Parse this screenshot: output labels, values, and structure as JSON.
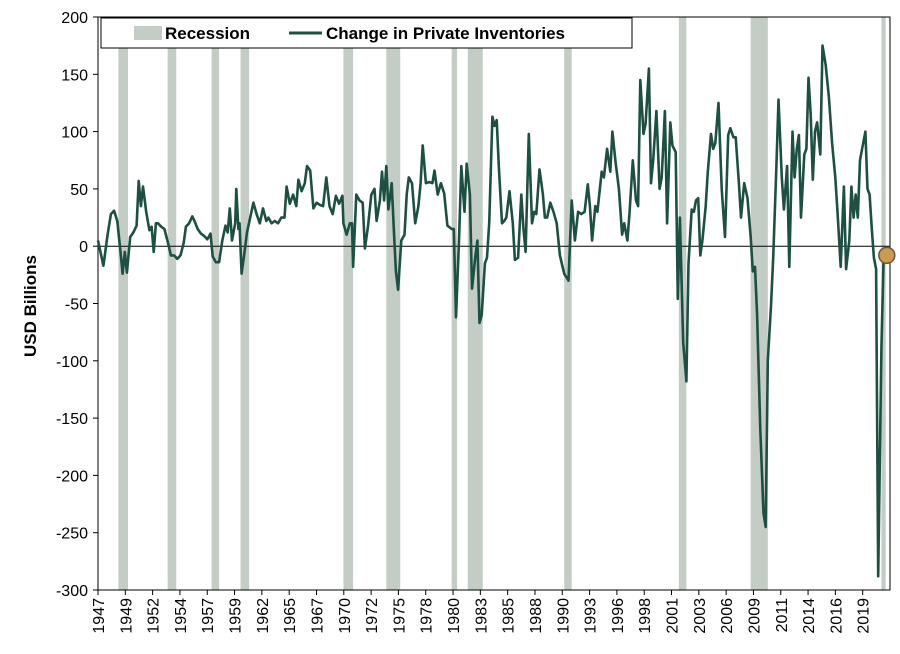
{
  "chart_data": {
    "type": "line",
    "ylabel": "USD Billions",
    "ylim": [
      -300,
      200
    ],
    "yticks": [
      200,
      150,
      100,
      50,
      0,
      -50,
      -100,
      -150,
      -200,
      -250,
      -300
    ],
    "xlim": [
      1947.0,
      2020.9
    ],
    "xtick_labels": [
      "1947",
      "1949",
      "1952",
      "1954",
      "1957",
      "1959",
      "1962",
      "1965",
      "1967",
      "1970",
      "1972",
      "1975",
      "1978",
      "1980",
      "1983",
      "1985",
      "1988",
      "1990",
      "1993",
      "1996",
      "1998",
      "2001",
      "2003",
      "2006",
      "2009",
      "2011",
      "2014",
      "2016",
      "2019"
    ],
    "legend": {
      "placement": "top",
      "entries": [
        {
          "label": "Recession",
          "kind": "band",
          "color": "#c3cdc6"
        },
        {
          "label": "Change in Private Inventories",
          "kind": "line",
          "color": "#1d5043"
        }
      ]
    },
    "colors": {
      "line": "#1d5043",
      "recession": "#c3cdc6",
      "marker": "#c89b50",
      "marker_edge": "#6b5a3a"
    },
    "recessions": [
      [
        1948.9,
        1949.8
      ],
      [
        1953.5,
        1954.3
      ],
      [
        1957.6,
        1958.3
      ],
      [
        1960.3,
        1961.1
      ],
      [
        1969.9,
        1970.8
      ],
      [
        1973.9,
        1975.2
      ],
      [
        1980.0,
        1980.5
      ],
      [
        1981.5,
        1982.9
      ],
      [
        1990.5,
        1991.2
      ],
      [
        2001.2,
        2001.9
      ],
      [
        2007.9,
        2009.5
      ],
      [
        2020.1,
        2020.5
      ]
    ],
    "highlight_point": {
      "x": 2020.6,
      "y": -8
    },
    "series": [
      {
        "name": "Change in Private Inventories",
        "points": [
          [
            1947.0,
            5
          ],
          [
            1947.5,
            -17
          ],
          [
            1947.9,
            10
          ],
          [
            1948.2,
            28
          ],
          [
            1948.5,
            31
          ],
          [
            1948.8,
            22
          ],
          [
            1949.1,
            -5
          ],
          [
            1949.3,
            -24
          ],
          [
            1949.5,
            -5
          ],
          [
            1949.7,
            -23
          ],
          [
            1950.0,
            8
          ],
          [
            1950.3,
            12
          ],
          [
            1950.6,
            18
          ],
          [
            1950.8,
            57
          ],
          [
            1951.0,
            35
          ],
          [
            1951.2,
            52
          ],
          [
            1951.5,
            30
          ],
          [
            1951.8,
            14
          ],
          [
            1952.0,
            17
          ],
          [
            1952.2,
            -5
          ],
          [
            1952.4,
            20
          ],
          [
            1952.6,
            20
          ],
          [
            1952.9,
            17
          ],
          [
            1953.2,
            15
          ],
          [
            1953.5,
            4
          ],
          [
            1953.8,
            -8
          ],
          [
            1954.1,
            -8
          ],
          [
            1954.4,
            -11
          ],
          [
            1954.7,
            -8
          ],
          [
            1955.0,
            3
          ],
          [
            1955.2,
            17
          ],
          [
            1955.5,
            20
          ],
          [
            1955.8,
            26
          ],
          [
            1956.0,
            22
          ],
          [
            1956.3,
            15
          ],
          [
            1956.6,
            11
          ],
          [
            1956.9,
            9
          ],
          [
            1957.2,
            6
          ],
          [
            1957.5,
            11
          ],
          [
            1957.7,
            -9
          ],
          [
            1958.0,
            -14
          ],
          [
            1958.3,
            -14
          ],
          [
            1958.6,
            5
          ],
          [
            1958.9,
            18
          ],
          [
            1959.1,
            12
          ],
          [
            1959.3,
            33
          ],
          [
            1959.5,
            5
          ],
          [
            1959.8,
            20
          ],
          [
            1959.9,
            50
          ],
          [
            1960.1,
            15
          ],
          [
            1960.2,
            20
          ],
          [
            1960.4,
            -24
          ],
          [
            1960.6,
            -10
          ],
          [
            1960.9,
            12
          ],
          [
            1961.2,
            25
          ],
          [
            1961.5,
            38
          ],
          [
            1961.8,
            28
          ],
          [
            1962.1,
            20
          ],
          [
            1962.4,
            33
          ],
          [
            1962.7,
            22
          ],
          [
            1962.9,
            25
          ],
          [
            1963.2,
            20
          ],
          [
            1963.5,
            22
          ],
          [
            1963.8,
            20
          ],
          [
            1964.1,
            25
          ],
          [
            1964.4,
            25
          ],
          [
            1964.6,
            52
          ],
          [
            1964.9,
            37
          ],
          [
            1965.2,
            45
          ],
          [
            1965.5,
            35
          ],
          [
            1965.7,
            58
          ],
          [
            1966.0,
            48
          ],
          [
            1966.3,
            55
          ],
          [
            1966.5,
            70
          ],
          [
            1966.8,
            66
          ],
          [
            1967.1,
            33
          ],
          [
            1967.4,
            38
          ],
          [
            1967.7,
            36
          ],
          [
            1968.0,
            35
          ],
          [
            1968.3,
            60
          ],
          [
            1968.6,
            35
          ],
          [
            1968.9,
            28
          ],
          [
            1969.2,
            44
          ],
          [
            1969.5,
            37
          ],
          [
            1969.8,
            44
          ],
          [
            1969.9,
            20
          ],
          [
            1970.2,
            10
          ],
          [
            1970.5,
            20
          ],
          [
            1970.7,
            20
          ],
          [
            1970.8,
            -18
          ],
          [
            1971.1,
            45
          ],
          [
            1971.4,
            40
          ],
          [
            1971.7,
            38
          ],
          [
            1971.9,
            -2
          ],
          [
            1972.2,
            18
          ],
          [
            1972.5,
            45
          ],
          [
            1972.8,
            50
          ],
          [
            1973.0,
            22
          ],
          [
            1973.3,
            40
          ],
          [
            1973.5,
            65
          ],
          [
            1973.7,
            40
          ],
          [
            1973.9,
            70
          ],
          [
            1974.1,
            32
          ],
          [
            1974.4,
            55
          ],
          [
            1974.6,
            15
          ],
          [
            1974.8,
            -22
          ],
          [
            1975.0,
            -38
          ],
          [
            1975.3,
            5
          ],
          [
            1975.6,
            10
          ],
          [
            1975.8,
            45
          ],
          [
            1976.0,
            60
          ],
          [
            1976.3,
            55
          ],
          [
            1976.6,
            20
          ],
          [
            1976.9,
            35
          ],
          [
            1977.1,
            55
          ],
          [
            1977.3,
            88
          ],
          [
            1977.6,
            55
          ],
          [
            1977.9,
            56
          ],
          [
            1978.2,
            55
          ],
          [
            1978.4,
            66
          ],
          [
            1978.7,
            45
          ],
          [
            1979.0,
            55
          ],
          [
            1979.3,
            46
          ],
          [
            1979.6,
            18
          ],
          [
            1980.0,
            15
          ],
          [
            1980.2,
            15
          ],
          [
            1980.4,
            -62
          ],
          [
            1980.7,
            10
          ],
          [
            1980.9,
            70
          ],
          [
            1981.2,
            30
          ],
          [
            1981.4,
            72
          ],
          [
            1981.7,
            45
          ],
          [
            1981.9,
            -37
          ],
          [
            1982.2,
            -10
          ],
          [
            1982.4,
            5
          ],
          [
            1982.6,
            -67
          ],
          [
            1982.8,
            -60
          ],
          [
            1983.1,
            -15
          ],
          [
            1983.3,
            -10
          ],
          [
            1983.5,
            20
          ],
          [
            1983.8,
            113
          ],
          [
            1984.0,
            105
          ],
          [
            1984.2,
            110
          ],
          [
            1984.4,
            70
          ],
          [
            1984.7,
            20
          ],
          [
            1984.9,
            22
          ],
          [
            1985.1,
            25
          ],
          [
            1985.4,
            48
          ],
          [
            1985.7,
            20
          ],
          [
            1985.9,
            -12
          ],
          [
            1986.2,
            -10
          ],
          [
            1986.5,
            45
          ],
          [
            1986.7,
            15
          ],
          [
            1986.9,
            -5
          ],
          [
            1987.2,
            98
          ],
          [
            1987.5,
            20
          ],
          [
            1987.7,
            30
          ],
          [
            1987.9,
            28
          ],
          [
            1988.2,
            67
          ],
          [
            1988.5,
            46
          ],
          [
            1988.7,
            25
          ],
          [
            1988.9,
            25
          ],
          [
            1989.2,
            38
          ],
          [
            1989.5,
            30
          ],
          [
            1989.8,
            20
          ],
          [
            1990.1,
            -8
          ],
          [
            1990.5,
            -24
          ],
          [
            1990.9,
            -30
          ],
          [
            1991.2,
            40
          ],
          [
            1991.5,
            5
          ],
          [
            1991.8,
            30
          ],
          [
            1992.1,
            28
          ],
          [
            1992.4,
            30
          ],
          [
            1992.7,
            54
          ],
          [
            1992.9,
            35
          ],
          [
            1993.1,
            5
          ],
          [
            1993.4,
            35
          ],
          [
            1993.6,
            30
          ],
          [
            1993.8,
            48
          ],
          [
            1994.0,
            65
          ],
          [
            1994.2,
            60
          ],
          [
            1994.5,
            85
          ],
          [
            1994.8,
            65
          ],
          [
            1995.0,
            100
          ],
          [
            1995.3,
            73
          ],
          [
            1995.6,
            50
          ],
          [
            1995.9,
            10
          ],
          [
            1996.1,
            20
          ],
          [
            1996.4,
            5
          ],
          [
            1996.6,
            30
          ],
          [
            1996.9,
            75
          ],
          [
            1997.2,
            40
          ],
          [
            1997.4,
            35
          ],
          [
            1997.6,
            145
          ],
          [
            1997.9,
            98
          ],
          [
            1998.1,
            107
          ],
          [
            1998.4,
            155
          ],
          [
            1998.6,
            55
          ],
          [
            1998.8,
            75
          ],
          [
            1999.1,
            118
          ],
          [
            1999.4,
            50
          ],
          [
            1999.6,
            60
          ],
          [
            1999.9,
            118
          ],
          [
            2000.1,
            20
          ],
          [
            2000.4,
            108
          ],
          [
            2000.6,
            88
          ],
          [
            2000.9,
            82
          ],
          [
            2001.1,
            -46
          ],
          [
            2001.3,
            25
          ],
          [
            2001.6,
            -84
          ],
          [
            2001.9,
            -118
          ],
          [
            2002.1,
            -15
          ],
          [
            2002.4,
            32
          ],
          [
            2002.6,
            30
          ],
          [
            2002.8,
            40
          ],
          [
            2003.0,
            42
          ],
          [
            2003.2,
            -8
          ],
          [
            2003.4,
            5
          ],
          [
            2003.7,
            35
          ],
          [
            2003.9,
            65
          ],
          [
            2004.2,
            98
          ],
          [
            2004.4,
            85
          ],
          [
            2004.6,
            90
          ],
          [
            2004.9,
            125
          ],
          [
            2005.2,
            50
          ],
          [
            2005.5,
            8
          ],
          [
            2005.8,
            97
          ],
          [
            2006.0,
            103
          ],
          [
            2006.3,
            95
          ],
          [
            2006.5,
            95
          ],
          [
            2006.8,
            55
          ],
          [
            2007.0,
            25
          ],
          [
            2007.3,
            55
          ],
          [
            2007.6,
            42
          ],
          [
            2007.9,
            8
          ],
          [
            2008.1,
            -22
          ],
          [
            2008.3,
            -18
          ],
          [
            2008.5,
            -60
          ],
          [
            2008.8,
            -160
          ],
          [
            2009.1,
            -233
          ],
          [
            2009.3,
            -245
          ],
          [
            2009.5,
            -100
          ],
          [
            2009.8,
            -52
          ],
          [
            2010.0,
            -10
          ],
          [
            2010.3,
            70
          ],
          [
            2010.5,
            128
          ],
          [
            2010.8,
            60
          ],
          [
            2011.0,
            32
          ],
          [
            2011.3,
            70
          ],
          [
            2011.5,
            -18
          ],
          [
            2011.8,
            100
          ],
          [
            2012.0,
            60
          ],
          [
            2012.2,
            85
          ],
          [
            2012.4,
            97
          ],
          [
            2012.6,
            25
          ],
          [
            2012.9,
            80
          ],
          [
            2013.1,
            85
          ],
          [
            2013.3,
            147
          ],
          [
            2013.5,
            115
          ],
          [
            2013.7,
            58
          ],
          [
            2013.9,
            100
          ],
          [
            2014.1,
            108
          ],
          [
            2014.4,
            80
          ],
          [
            2014.6,
            175
          ],
          [
            2014.9,
            158
          ],
          [
            2015.2,
            130
          ],
          [
            2015.5,
            90
          ],
          [
            2015.8,
            60
          ],
          [
            2016.0,
            30
          ],
          [
            2016.3,
            -18
          ],
          [
            2016.6,
            52
          ],
          [
            2016.8,
            -20
          ],
          [
            2017.1,
            5
          ],
          [
            2017.3,
            52
          ],
          [
            2017.5,
            25
          ],
          [
            2017.7,
            45
          ],
          [
            2017.9,
            25
          ],
          [
            2018.1,
            75
          ],
          [
            2018.3,
            85
          ],
          [
            2018.6,
            100
          ],
          [
            2018.8,
            50
          ],
          [
            2019.0,
            45
          ],
          [
            2019.2,
            15
          ],
          [
            2019.4,
            -10
          ],
          [
            2019.6,
            -20
          ],
          [
            2019.8,
            -288
          ],
          [
            2020.1,
            -90
          ],
          [
            2020.3,
            -10
          ],
          [
            2020.6,
            -8
          ]
        ]
      }
    ]
  }
}
